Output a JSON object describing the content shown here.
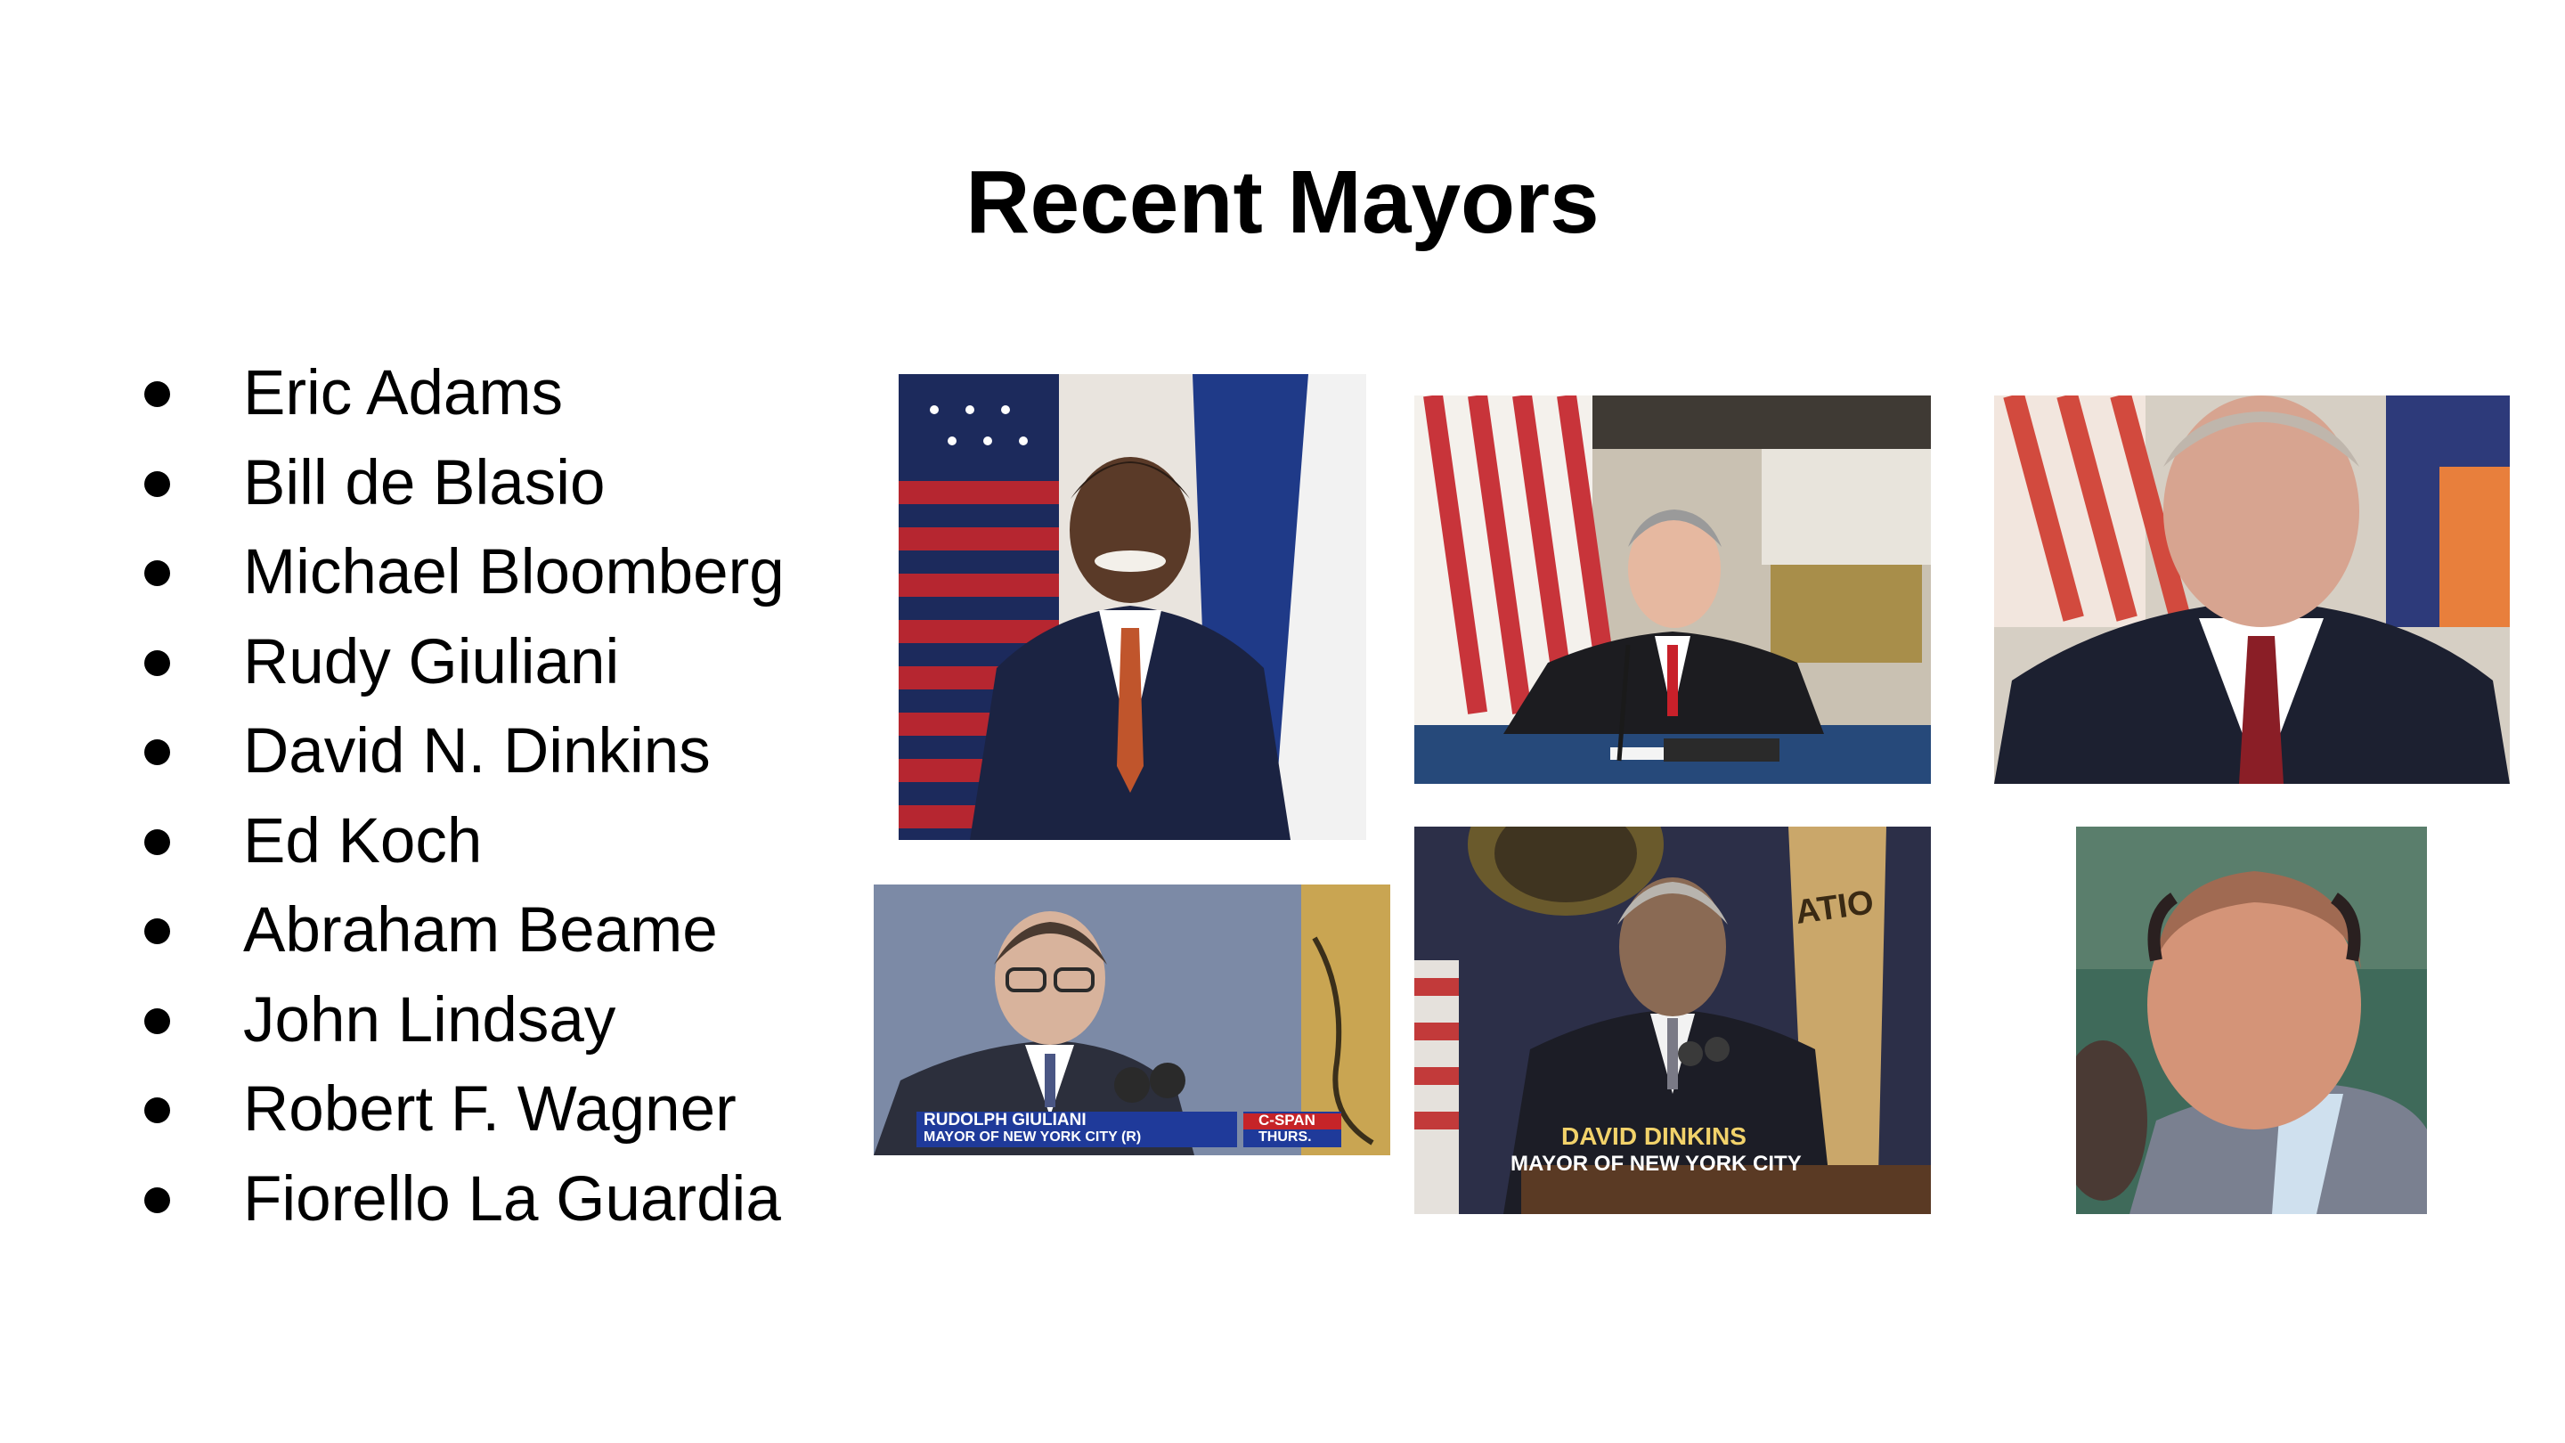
{
  "slide": {
    "title": "Recent Mayors",
    "mayors": [
      "Eric Adams",
      "Bill de Blasio",
      "Michael Bloomberg",
      "Rudy Giuliani",
      "David N. Dinkins",
      "Ed Koch",
      "Abraham Beame",
      "John Lindsay",
      "Robert F. Wagner",
      "Fiorello La Guardia"
    ]
  },
  "photos": {
    "giuliani": {
      "caption_name": "RUDOLPH GIULIANI",
      "caption_title": "MAYOR OF NEW YORK CITY (R)",
      "network": "C-SPAN",
      "day": "THURS."
    },
    "dinkins": {
      "caption_name": "DAVID DINKINS",
      "caption_title": "MAYOR OF NEW YORK CITY",
      "plaque_text": "ATIO"
    }
  }
}
